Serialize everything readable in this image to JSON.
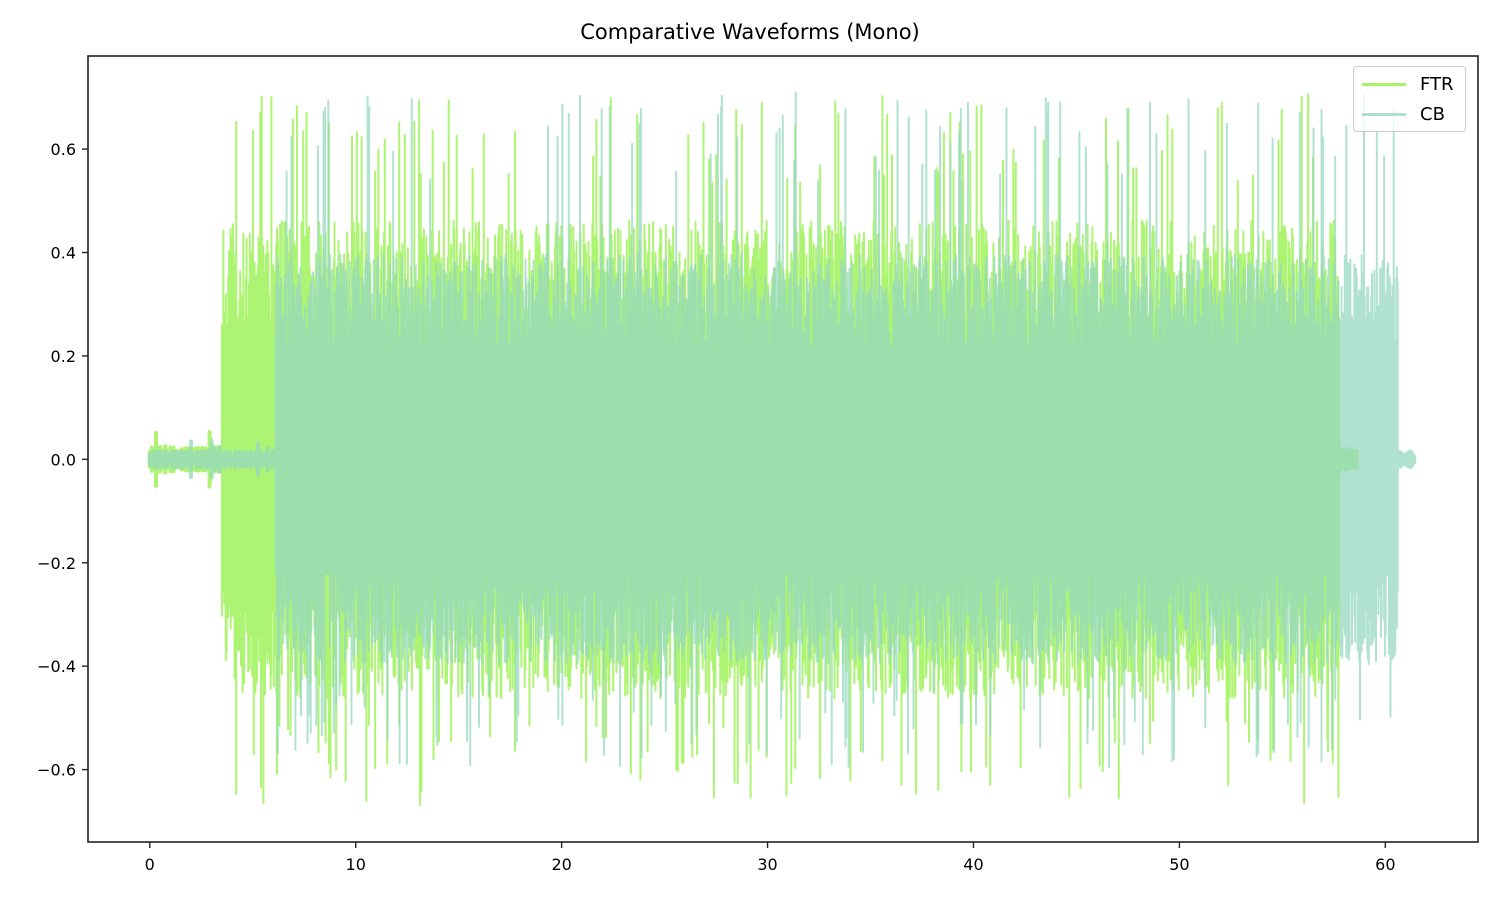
{
  "chart_data": {
    "type": "line",
    "title": "Comparative Waveforms (Mono)",
    "xlabel": "",
    "ylabel": "",
    "xlim": [
      -3.0,
      64.5
    ],
    "ylim": [
      -0.74,
      0.78
    ],
    "x_ticks": [
      0,
      10,
      20,
      30,
      40,
      50,
      60
    ],
    "x_tick_labels": [
      "0",
      "10",
      "20",
      "30",
      "40",
      "50",
      "60"
    ],
    "y_ticks": [
      -0.6,
      -0.4,
      -0.2,
      0.0,
      0.2,
      0.4,
      0.6
    ],
    "y_tick_labels": [
      "−0.6",
      "−0.4",
      "−0.2",
      "0.0",
      "0.2",
      "0.4",
      "0.6"
    ],
    "grid": false,
    "legend_position": "upper right",
    "series": [
      {
        "name": "FTR",
        "color": "#a6f364",
        "alpha": 0.9,
        "quiet_start": 0.0,
        "loud_start": 3.5,
        "loud_end": 57.8,
        "tail_end": 58.6,
        "quiet_amplitude": 0.015,
        "peak_max": 0.71,
        "peak_min": -0.67,
        "typical_envelope": 0.42
      },
      {
        "name": "CB",
        "color": "#97d9c0",
        "alpha": 0.75,
        "quiet_start": 0.0,
        "loud_start": 6.1,
        "loud_end": 60.6,
        "tail_end": 61.4,
        "quiet_amplitude": 0.01,
        "peak_max": 0.71,
        "peak_min": -0.6,
        "typical_envelope": 0.36
      }
    ],
    "overlap_color": "#8edb93"
  },
  "legend": {
    "items": [
      {
        "label": "FTR",
        "color": "#a6f364"
      },
      {
        "label": "CB",
        "color": "#b0dfcd"
      }
    ]
  }
}
